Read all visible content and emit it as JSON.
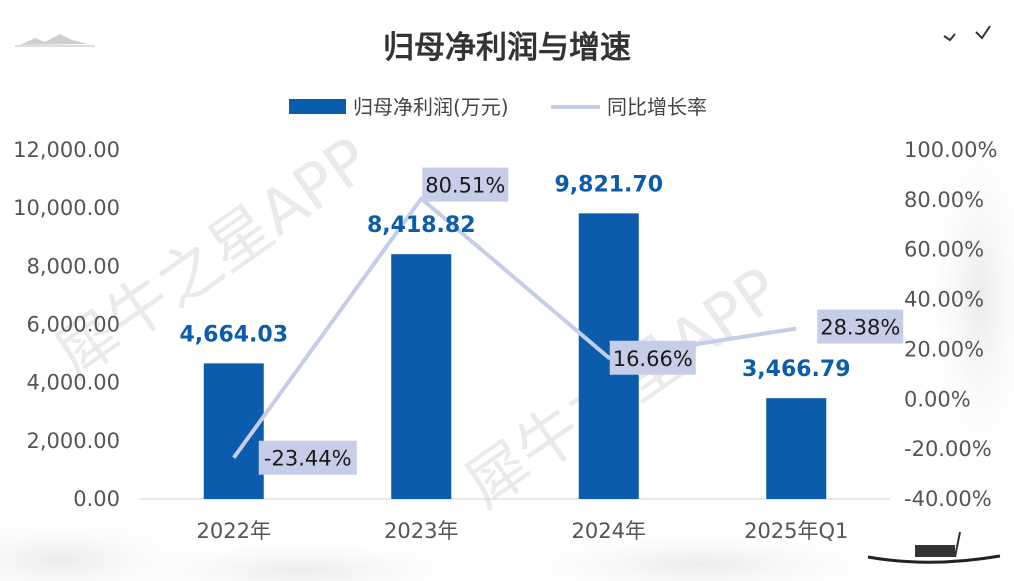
{
  "chart_data": {
    "type": "bar",
    "title": "归母净利润与增速",
    "categories": [
      "2022年",
      "2023年",
      "2024年",
      "2025年Q1"
    ],
    "series": [
      {
        "name": "归母净利润(万元)",
        "kind": "bar",
        "axis": "left",
        "values": [
          4664.03,
          8418.82,
          9821.7,
          3466.79
        ],
        "labels": [
          "4,664.03",
          "8,418.82",
          "9,821.70",
          "3,466.79"
        ],
        "color": "#0b5cad"
      },
      {
        "name": "同比增长率",
        "kind": "line",
        "axis": "right",
        "values": [
          -23.44,
          80.51,
          16.66,
          28.38
        ],
        "labels": [
          "-23.44%",
          "80.51%",
          "16.66%",
          "28.38%"
        ],
        "color": "#c5cde8"
      }
    ],
    "y_left": {
      "range": [
        0,
        12000
      ],
      "ticks": [
        "0.00",
        "2,000.00",
        "4,000.00",
        "6,000.00",
        "8,000.00",
        "10,000.00",
        "12,000.00"
      ]
    },
    "y_right": {
      "range": [
        -40,
        100
      ],
      "ticks": [
        "-40.00%",
        "-20.00%",
        "0.00%",
        "20.00%",
        "40.00%",
        "60.00%",
        "80.00%",
        "100.00%"
      ]
    },
    "legend_position": "top",
    "grid": false,
    "watermark": "犀牛之星APP"
  }
}
